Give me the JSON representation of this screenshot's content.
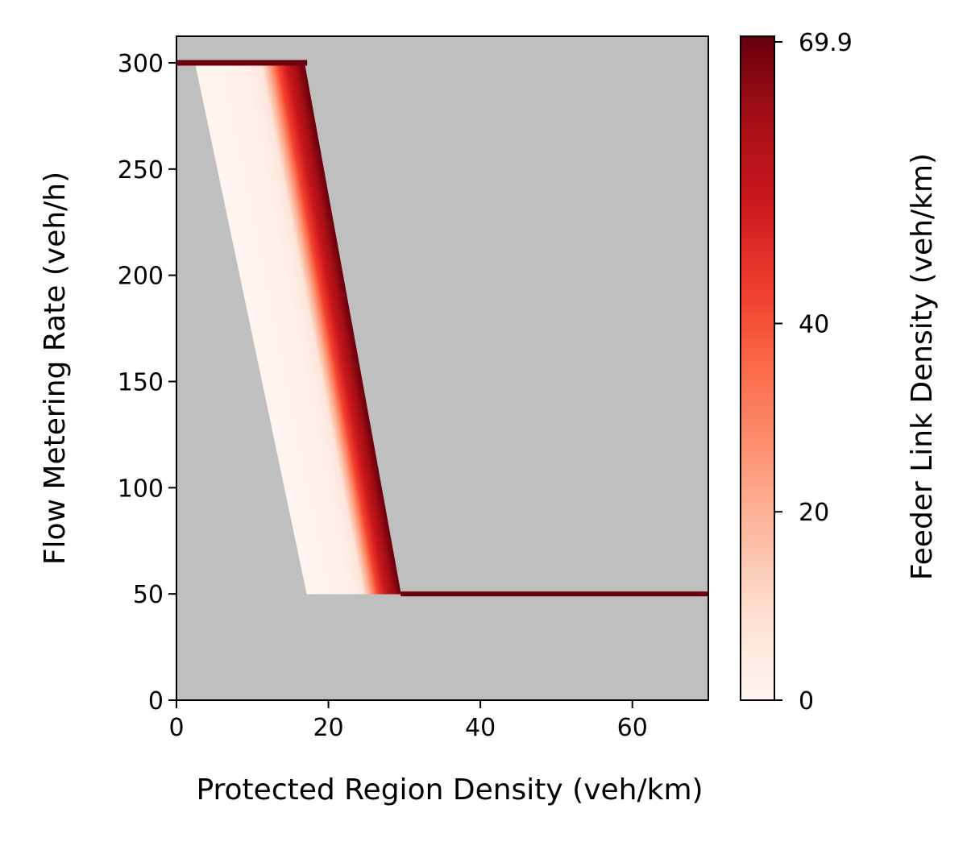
{
  "chart_data": {
    "type": "heatmap",
    "title": "",
    "xlabel": "Protected Region Density (veh/km)",
    "ylabel": "Flow Metering Rate (veh/h)",
    "xlim": [
      0,
      70
    ],
    "ylim": [
      0,
      312.5
    ],
    "xticks": [
      0,
      20,
      40,
      60
    ],
    "xtick_labels": [
      "0",
      "20",
      "40",
      "60"
    ],
    "yticks": [
      0,
      50,
      100,
      150,
      200,
      250,
      300
    ],
    "ytick_labels": [
      "0",
      "50",
      "100",
      "150",
      "200",
      "250",
      "300"
    ],
    "background_color": "#bfbfbf",
    "grid": false,
    "colorbar": {
      "label": "Feeder Link Density (veh/km)",
      "colormap": "Reds",
      "range": [
        0,
        70.5
      ],
      "ticks": [
        0,
        20,
        40,
        69.9
      ],
      "tick_labels": [
        "0",
        "20",
        "40",
        "69.9"
      ]
    },
    "region": {
      "max_rate": 300,
      "min_rate": 50,
      "left_boundary": [
        {
          "x": 2.5,
          "y": 300
        },
        {
          "x": 17.2,
          "y": 50
        }
      ],
      "right_boundary": [
        {
          "x": 16.8,
          "y": 300
        },
        {
          "x": 29.5,
          "y": 50
        }
      ],
      "top_band": {
        "x_start": 0,
        "x_end": 17.2,
        "y": 300,
        "value": 69.9
      },
      "bottom_band": {
        "x_start": 29.5,
        "x_end": 70,
        "y": 50,
        "value": 69.9
      },
      "color_stops": [
        {
          "fraction": 0.0,
          "value": 0
        },
        {
          "fraction": 0.45,
          "value": 2
        },
        {
          "fraction": 0.6,
          "value": 6
        },
        {
          "fraction": 0.68,
          "value": 22
        },
        {
          "fraction": 0.76,
          "value": 42
        },
        {
          "fraction": 0.86,
          "value": 55
        },
        {
          "fraction": 1.0,
          "value": 69.9
        }
      ]
    }
  }
}
